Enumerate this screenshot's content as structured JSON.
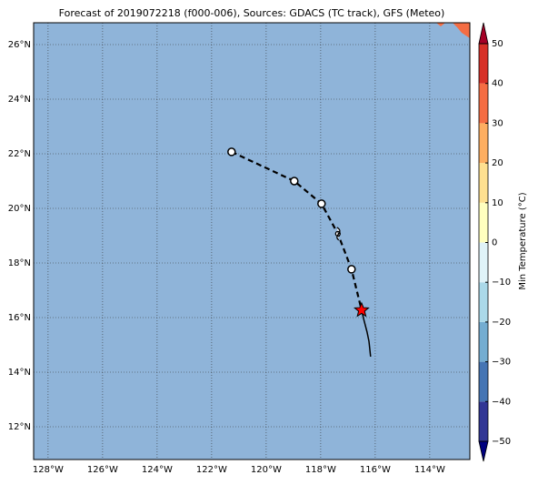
{
  "chart_data": {
    "type": "map",
    "title": "Forecast of 2019072218 (f000-006), Sources: GDACS (TC track), GFS (Meteo)",
    "xlim": [
      -128.53,
      -112.53
    ],
    "ylim": [
      10.8,
      26.8
    ],
    "xticks": [
      {
        "value": -128,
        "label": "128°W"
      },
      {
        "value": -126,
        "label": "126°W"
      },
      {
        "value": -124,
        "label": "124°W"
      },
      {
        "value": -122,
        "label": "122°W"
      },
      {
        "value": -120,
        "label": "120°W"
      },
      {
        "value": -118,
        "label": "118°W"
      },
      {
        "value": -116,
        "label": "116°W"
      },
      {
        "value": -114,
        "label": "114°W"
      }
    ],
    "yticks": [
      {
        "value": 12,
        "label": "12°N"
      },
      {
        "value": 14,
        "label": "14°N"
      },
      {
        "value": 16,
        "label": "16°N"
      },
      {
        "value": 18,
        "label": "18°N"
      },
      {
        "value": 20,
        "label": "20°N"
      },
      {
        "value": 22,
        "label": "22°N"
      },
      {
        "value": 24,
        "label": "24°N"
      },
      {
        "value": 26,
        "label": "26°N"
      }
    ],
    "grid": true,
    "ocean_color": "#8fb4d9",
    "land_color": "#f46d43",
    "forecast_track": {
      "x": [
        -121.27,
        -118.97,
        -117.97,
        -117.37,
        -116.87,
        -116.5
      ],
      "y": [
        22.07,
        21.0,
        20.17,
        19.07,
        17.77,
        16.27
      ],
      "markers": [
        "circle",
        "circle",
        "circle",
        "storm",
        "circle",
        "star"
      ],
      "color": "#000000",
      "star_color": "#ff0000"
    },
    "past_track": {
      "x": [
        -116.5,
        -116.43,
        -116.3,
        -116.23,
        -116.17
      ],
      "y": [
        16.27,
        15.97,
        15.47,
        15.13,
        14.57
      ],
      "color": "#000000"
    },
    "colorbar": {
      "label": "Min Temperature (°C)",
      "lim": [
        -50,
        50
      ],
      "ticks": [
        {
          "value": -50,
          "label": "−50"
        },
        {
          "value": -40,
          "label": "−40"
        },
        {
          "value": -30,
          "label": "−30"
        },
        {
          "value": -20,
          "label": "−20"
        },
        {
          "value": -10,
          "label": "−10"
        },
        0,
        10,
        20,
        30,
        40,
        50
      ],
      "colors": [
        "#313695",
        "#4575b4",
        "#74add1",
        "#abd9e9",
        "#e0f3f8",
        "#ffffbf",
        "#fee090",
        "#fdae61",
        "#f46d43",
        "#d73027"
      ],
      "under_color": "#00007f",
      "over_color": "#a50026"
    }
  }
}
